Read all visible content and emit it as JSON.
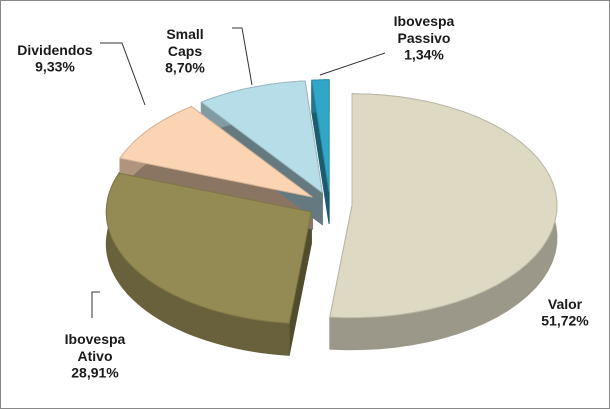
{
  "chart_data": {
    "type": "pie",
    "categories": [
      "Valor",
      "Ibovespa Ativo",
      "Dividendos",
      "Small Caps",
      "Ibovespa Passivo"
    ],
    "values": [
      51.72,
      28.91,
      9.33,
      8.7,
      1.34
    ],
    "value_labels": [
      "51,72%",
      "28,91%",
      "9,33%",
      "8,70%",
      "1,34%"
    ],
    "colors": [
      "#ddd9c3",
      "#948a54",
      "#fbd4b4",
      "#b7dde8",
      "#31a7c8"
    ]
  }
}
